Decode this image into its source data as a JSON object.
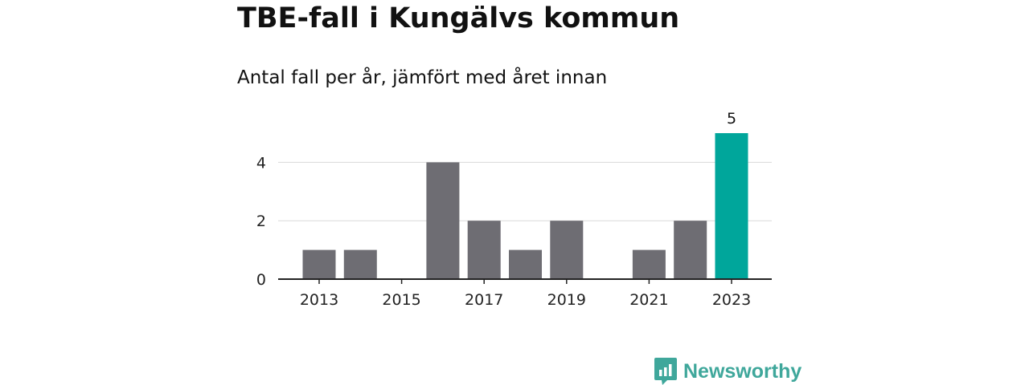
{
  "header": {
    "title": "TBE-fall i Kungälvs kommun",
    "subtitle": "Antal fall per år, jämfört med året innan"
  },
  "brand": {
    "name": "Newsworthy",
    "color": "#3fa79b"
  },
  "colors": {
    "bar": "#6e6d73",
    "highlight": "#00a69b",
    "grid": "#d9d9d9",
    "axis": "#222222",
    "text": "#222222"
  },
  "chart_data": {
    "type": "bar",
    "title": "TBE-fall i Kungälvs kommun",
    "subtitle": "Antal fall per år, jämfört med året innan",
    "xlabel": "",
    "ylabel": "",
    "categories": [
      "2013",
      "2014",
      "2015",
      "2016",
      "2017",
      "2018",
      "2019",
      "2020",
      "2021",
      "2022",
      "2023"
    ],
    "values": [
      1,
      1,
      0,
      4,
      2,
      1,
      2,
      0,
      1,
      2,
      5
    ],
    "ylim": [
      0,
      5
    ],
    "yticks": [
      0,
      2,
      4
    ],
    "xtick_labels": [
      "2013",
      "2015",
      "2017",
      "2019",
      "2021",
      "2023"
    ],
    "highlight_category": "2023",
    "data_labels": [
      {
        "category": "2023",
        "text": "5"
      }
    ],
    "grid": true,
    "legend": "none"
  }
}
